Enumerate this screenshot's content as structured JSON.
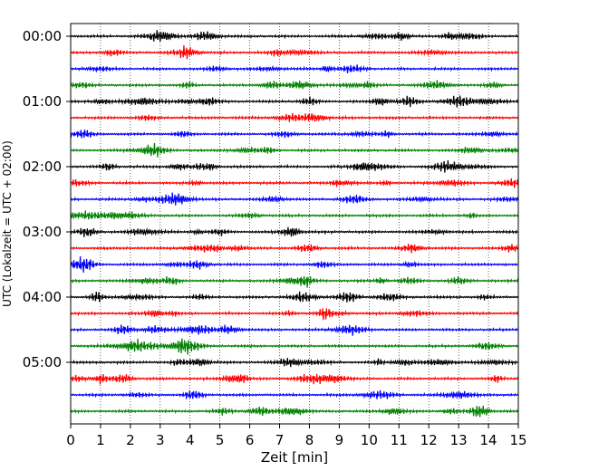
{
  "chart_data": {
    "type": "line",
    "subtype": "helicorder",
    "xlabel": "Zeit  [min]",
    "ylabel": "UTC (Lokalzeit = UTC + 02:00)",
    "xlim": [
      0,
      15
    ],
    "x_ticks": [
      "0",
      "1",
      "2",
      "3",
      "4",
      "5",
      "6",
      "7",
      "8",
      "9",
      "10",
      "11",
      "12",
      "13",
      "14",
      "15"
    ],
    "y_ticks": [
      "00:00",
      "01:00",
      "02:00",
      "03:00",
      "04:00",
      "05:00"
    ],
    "grid": "vertical dotted lines at each minute",
    "trace_minutes": 15,
    "trace_count": 24,
    "color_cycle": [
      "#000000",
      "#ff0000",
      "#0000ff",
      "#008000"
    ]
  }
}
